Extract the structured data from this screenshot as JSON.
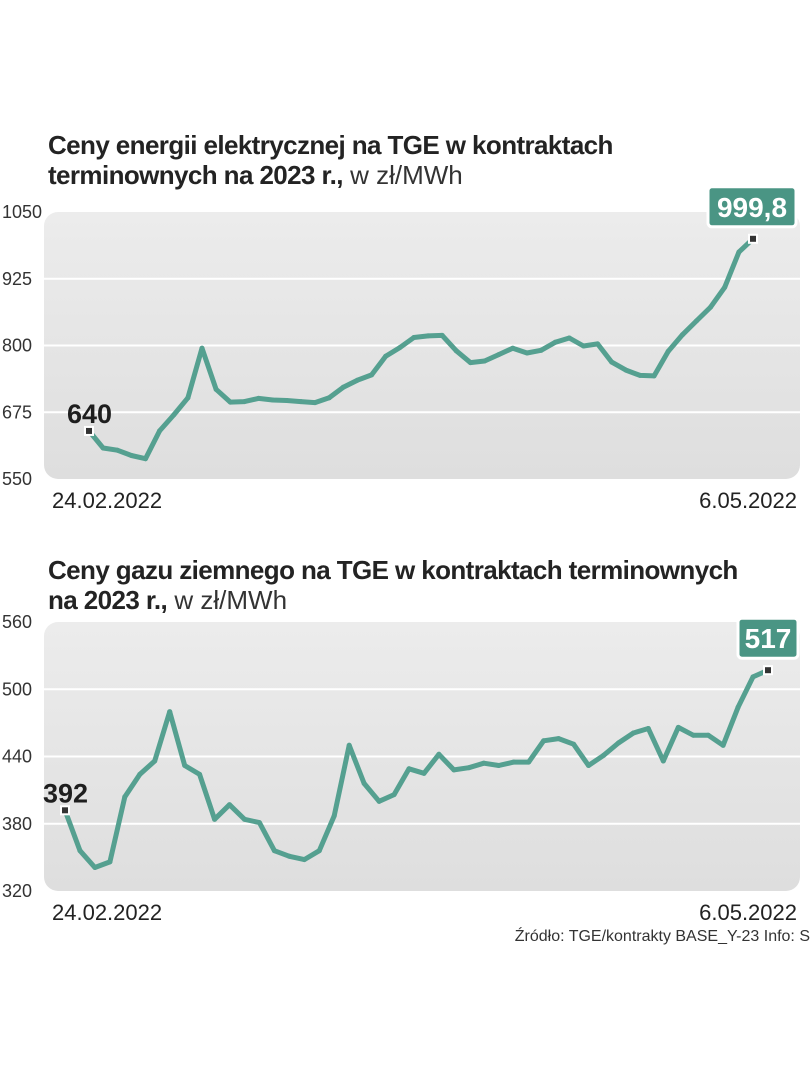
{
  "charts": [
    {
      "title_bold_1": "Ceny energii elektrycznej na TGE w kontraktach",
      "title_bold_2": "terminownych na 2023 r.,",
      "unit": " w zł/MWh"
    },
    {
      "title_bold_1": "Ceny gazu ziemnego na TGE w kontraktach terminownych",
      "title_bold_2": "na 2023 r.,",
      "unit": " w zł/MWh"
    }
  ],
  "source": "Źródło: TGE/kontrakty BASE_Y-23  Info: S",
  "colors": {
    "line": "#55a090",
    "label_bg": "#4a9584",
    "panel_top": "#ececec",
    "panel_bottom": "#dedede"
  },
  "chart_data": [
    {
      "type": "line",
      "title": "Ceny energii elektrycznej na TGE w kontraktach terminownych na 2023 r., w zł/MWh",
      "ylabel": "zł/MWh",
      "ylim": [
        550,
        1050
      ],
      "yticks": [
        "1050",
        "925",
        "800",
        "675",
        "550"
      ],
      "x_start_label": "24.02.2022",
      "x_end_label": "6.05.2022",
      "start_label": "640",
      "end_label": "999,8",
      "values": [
        640,
        608,
        604,
        594,
        588,
        640,
        670,
        702,
        795,
        718,
        694,
        695,
        701,
        698,
        697,
        695,
        693,
        702,
        722,
        735,
        745,
        780,
        796,
        815,
        818,
        819,
        790,
        768,
        771,
        783,
        795,
        786,
        791,
        806,
        814,
        799,
        803,
        769,
        754,
        744,
        743,
        789,
        820,
        846,
        872,
        909,
        975,
        999.8
      ]
    },
    {
      "type": "line",
      "title": "Ceny gazu ziemnego na TGE w kontraktach terminownych na 2023 r., w zł/MWh",
      "ylabel": "zł/MWh",
      "ylim": [
        320,
        560
      ],
      "yticks": [
        "560",
        "500",
        "440",
        "380",
        "320"
      ],
      "x_start_label": "24.02.2022",
      "x_end_label": "6.05.2022",
      "start_label": "392",
      "end_label": "517",
      "values": [
        392,
        356,
        341,
        346,
        404,
        424,
        436,
        480,
        432,
        424,
        384,
        397,
        384,
        381,
        356,
        351,
        348,
        356,
        387,
        450,
        416,
        400,
        406,
        429,
        425,
        442,
        428,
        430,
        434,
        432,
        435,
        435,
        454,
        456,
        451,
        432,
        441,
        452,
        461,
        465,
        436,
        466,
        459,
        459,
        450,
        484,
        511,
        517
      ]
    }
  ]
}
